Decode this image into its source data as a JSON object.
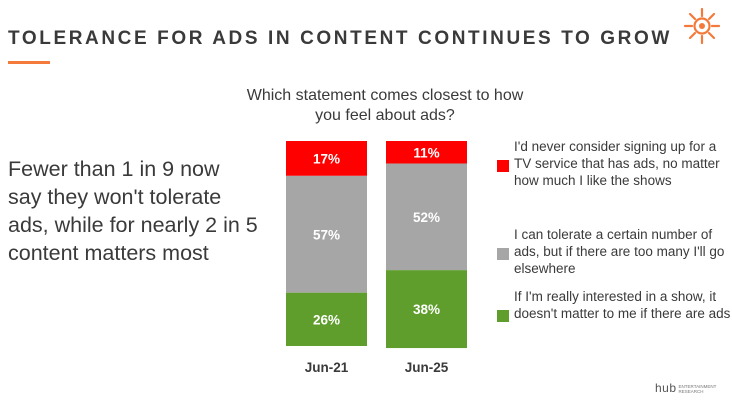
{
  "title": "TOLERANCE FOR ADS IN CONTENT CONTINUES TO GROW",
  "side_text": "Fewer than 1 in 9 now say they won't tolerate ads, while for nearly 2 in 5 content matters most",
  "question": "Which statement comes closest to how you feel about ads?",
  "brand": {
    "name": "hub",
    "line1": "ENTERTAINMENT",
    "line2": "RESEARCH"
  },
  "colors": {
    "accent": "#f47a3c",
    "red": "#ff0000",
    "gray": "#a6a6a6",
    "green": "#5f9e2d"
  },
  "legend": [
    {
      "label": "I'd never consider signing up for a TV service that has ads, no matter how much I like the shows",
      "color": "#ff0000"
    },
    {
      "label": "I can tolerate a certain number of ads, but if there are too many I'll go elsewhere",
      "color": "#a6a6a6"
    },
    {
      "label": "If I'm really interested in a show, it doesn't matter to me if there are ads",
      "color": "#5f9e2d"
    }
  ],
  "chart_data": {
    "type": "bar",
    "stacked": true,
    "percent": true,
    "categories": [
      "Jun-21",
      "Jun-25"
    ],
    "series": [
      {
        "name": "I'd never consider signing up for a TV service that has ads, no matter how much I like the shows",
        "values": [
          17,
          11
        ],
        "labels": [
          "17%",
          "11%"
        ],
        "color": "#ff0000"
      },
      {
        "name": "I can tolerate a certain number of ads, but if there are too many I'll go elsewhere",
        "values": [
          57,
          52
        ],
        "labels": [
          "57%",
          "52%"
        ],
        "color": "#a6a6a6"
      },
      {
        "name": "If I'm really interested in a show, it doesn't matter to me if there are ads",
        "values": [
          26,
          38
        ],
        "labels": [
          "26%",
          "38%"
        ],
        "color": "#5f9e2d"
      }
    ],
    "ylim": [
      0,
      100
    ],
    "grid": false,
    "legend_position": "right"
  }
}
